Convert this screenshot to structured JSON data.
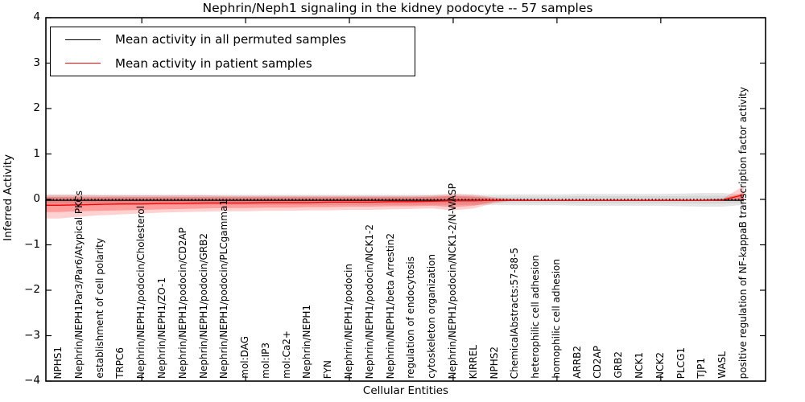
{
  "chart_data": {
    "type": "line",
    "title": "Nephrin/Neph1 signaling in the kidney podocyte -- 57 samples",
    "xlabel": "Cellular Entities",
    "ylabel": "Inferred Activity",
    "ylim": [
      -4,
      4
    ],
    "yticks": [
      4,
      3,
      2,
      1,
      0,
      -1,
      -2,
      -3,
      -4
    ],
    "x_major_tick_every": 5,
    "grid": false,
    "legend_position": "upper left",
    "entities": [
      "NPHS1",
      "Nephrin/NEPH1Par3/Par6/Atypical PKCs",
      "establishment of cell polarity",
      "TRPC6",
      "Nephrin/NEPH1/podocin/Cholesterol",
      "Nephrin/NEPH1/ZO-1",
      "Nephrin/NEPH1/podocin/CD2AP",
      "Nephrin/NEPH1/podocin/GRB2",
      "Nephrin/NEPH1/podocin/PLCgamma1",
      "mol:DAG",
      "mol:IP3",
      "mol:Ca2+",
      "Nephrin/NEPH1",
      "FYN",
      "Nephrin/NEPH1/podocin",
      "Nephrin/NEPH1/podocin/NCK1-2",
      "Nephrin/NEPH1/beta Arrestin2",
      "regulation of endocytosis",
      "cytoskeleton organization",
      "Nephrin/NEPH1/podocin/NCK1-2/N-WASP",
      "KIRREL",
      "NPHS2",
      "ChemicalAbstracts:57-88-5",
      "heterophilic cell adhesion",
      "homophilic cell adhesion",
      "ARRB2",
      "CD2AP",
      "GRB2",
      "NCK1",
      "NCK2",
      "PLCG1",
      "TJP1",
      "WASL",
      "positive regulation of NF-kappaB transcription factor activity"
    ],
    "series": [
      {
        "name": "Mean activity in all permuted samples",
        "color": "#000000",
        "style": "solid",
        "values": [
          -0.02,
          -0.02,
          -0.02,
          -0.02,
          -0.02,
          -0.02,
          -0.02,
          -0.02,
          -0.02,
          -0.02,
          -0.02,
          -0.02,
          -0.02,
          -0.02,
          -0.02,
          -0.02,
          -0.02,
          -0.02,
          -0.02,
          -0.02,
          -0.02,
          -0.02,
          -0.02,
          -0.02,
          -0.02,
          -0.02,
          -0.02,
          -0.02,
          -0.02,
          -0.02,
          -0.02,
          -0.02,
          -0.02,
          -0.02
        ]
      },
      {
        "name": "Mean activity in patient samples",
        "color": "#ff0000",
        "style": "solid",
        "values": [
          -0.13,
          -0.12,
          -0.11,
          -0.1,
          -0.1,
          -0.09,
          -0.09,
          -0.08,
          -0.08,
          -0.08,
          -0.07,
          -0.07,
          -0.07,
          -0.06,
          -0.06,
          -0.06,
          -0.05,
          -0.05,
          -0.04,
          -0.03,
          -0.03,
          -0.02,
          -0.02,
          -0.02,
          -0.02,
          -0.02,
          -0.02,
          -0.02,
          -0.02,
          -0.02,
          -0.02,
          -0.02,
          -0.01,
          0.1
        ]
      }
    ],
    "bands": [
      {
        "name": "permuted-sample-range-outer",
        "color": "#999999",
        "opacity": 0.25,
        "top": [
          0.1,
          0.1,
          0.1,
          0.1,
          0.1,
          0.1,
          0.1,
          0.1,
          0.1,
          0.1,
          0.1,
          0.1,
          0.1,
          0.1,
          0.1,
          0.1,
          0.1,
          0.1,
          0.1,
          0.1,
          0.1,
          0.1,
          0.11,
          0.11,
          0.11,
          0.12,
          0.12,
          0.12,
          0.12,
          0.12,
          0.13,
          0.14,
          0.14,
          0.1
        ],
        "bottom": [
          -0.12,
          -0.12,
          -0.12,
          -0.12,
          -0.12,
          -0.12,
          -0.12,
          -0.12,
          -0.12,
          -0.12,
          -0.12,
          -0.12,
          -0.12,
          -0.12,
          -0.12,
          -0.12,
          -0.12,
          -0.12,
          -0.12,
          -0.12,
          -0.12,
          -0.12,
          -0.13,
          -0.13,
          -0.13,
          -0.14,
          -0.14,
          -0.14,
          -0.14,
          -0.14,
          -0.15,
          -0.16,
          -0.16,
          -0.12
        ]
      },
      {
        "name": "permuted-sample-range-inner",
        "color": "#999999",
        "opacity": 0.2,
        "top": [
          0.06,
          0.06,
          0.06,
          0.06,
          0.06,
          0.06,
          0.06,
          0.06,
          0.06,
          0.06,
          0.06,
          0.06,
          0.06,
          0.06,
          0.06,
          0.06,
          0.06,
          0.06,
          0.06,
          0.06,
          0.06,
          0.06,
          0.06,
          0.06,
          0.06,
          0.07,
          0.07,
          0.07,
          0.07,
          0.07,
          0.07,
          0.08,
          0.08,
          0.06
        ],
        "bottom": [
          -0.07,
          -0.07,
          -0.07,
          -0.07,
          -0.07,
          -0.07,
          -0.07,
          -0.07,
          -0.07,
          -0.07,
          -0.07,
          -0.07,
          -0.07,
          -0.07,
          -0.07,
          -0.07,
          -0.07,
          -0.07,
          -0.07,
          -0.07,
          -0.07,
          -0.07,
          -0.07,
          -0.07,
          -0.07,
          -0.08,
          -0.08,
          -0.08,
          -0.08,
          -0.08,
          -0.08,
          -0.09,
          -0.09,
          -0.07
        ]
      },
      {
        "name": "patient-sample-range-outer",
        "color": "#ff0000",
        "opacity": 0.18,
        "top": [
          0.1,
          0.1,
          0.09,
          0.09,
          0.09,
          0.09,
          0.09,
          0.09,
          0.08,
          0.08,
          0.08,
          0.08,
          0.08,
          0.08,
          0.08,
          0.08,
          0.08,
          0.08,
          0.09,
          0.13,
          0.1,
          0.04,
          0.01,
          0,
          0,
          0,
          0,
          0,
          0,
          0,
          0,
          0,
          0.02,
          0.3
        ],
        "bottom": [
          -0.42,
          -0.38,
          -0.35,
          -0.33,
          -0.31,
          -0.29,
          -0.28,
          -0.27,
          -0.26,
          -0.26,
          -0.25,
          -0.25,
          -0.24,
          -0.24,
          -0.23,
          -0.23,
          -0.22,
          -0.21,
          -0.2,
          -0.24,
          -0.2,
          -0.08,
          -0.02,
          0,
          0,
          0,
          0,
          0,
          0,
          0,
          0,
          0,
          -0.01,
          -0.04
        ]
      },
      {
        "name": "patient-sample-range-inner",
        "color": "#ff0000",
        "opacity": 0.25,
        "top": [
          0.05,
          0.05,
          0.05,
          0.05,
          0.05,
          0.05,
          0.05,
          0.05,
          0.05,
          0.05,
          0.05,
          0.05,
          0.05,
          0.05,
          0.05,
          0.05,
          0.05,
          0.05,
          0.06,
          0.08,
          0.06,
          0.02,
          0,
          0,
          0,
          0,
          0,
          0,
          0,
          0,
          0,
          0,
          0.01,
          0.15
        ],
        "bottom": [
          -0.28,
          -0.26,
          -0.25,
          -0.24,
          -0.23,
          -0.22,
          -0.21,
          -0.2,
          -0.19,
          -0.19,
          -0.18,
          -0.18,
          -0.17,
          -0.17,
          -0.16,
          -0.16,
          -0.15,
          -0.15,
          -0.14,
          -0.17,
          -0.14,
          -0.05,
          -0.01,
          0,
          0,
          0,
          0,
          0,
          0,
          0,
          0,
          0,
          -0.01,
          -0.02
        ]
      }
    ],
    "zero_line": {
      "y": 0,
      "style": "dotted",
      "color": "#000000"
    }
  }
}
